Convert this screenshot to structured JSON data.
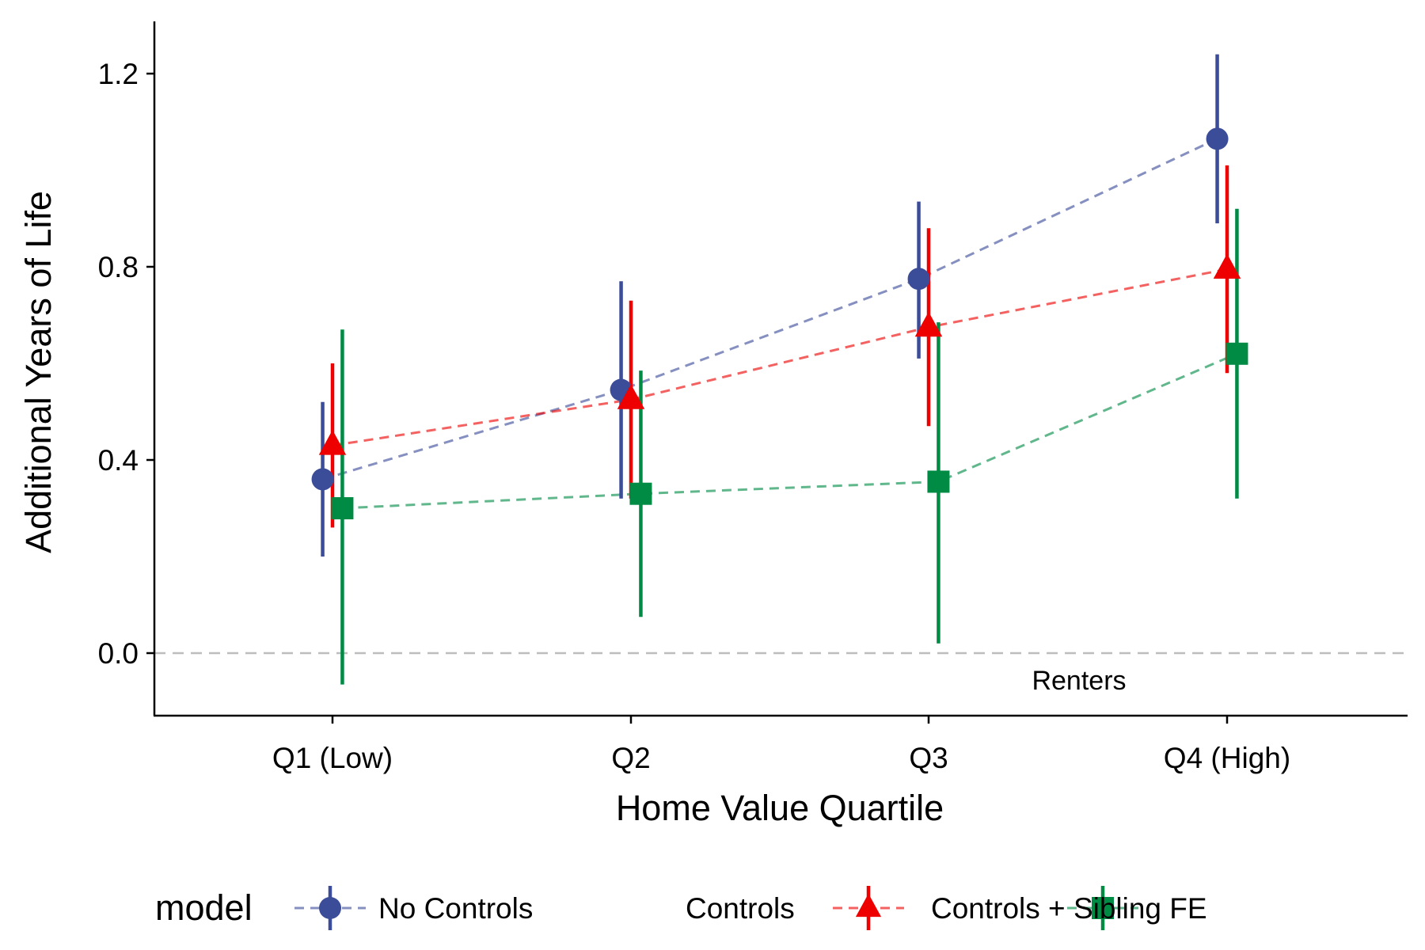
{
  "chart_data": {
    "type": "scatter",
    "subtype": "point-range with dashed connecting lines",
    "title": "",
    "xlabel": "Home Value Quartile",
    "ylabel": "Additional Years of Life",
    "categories": [
      "Q1 (Low)",
      "Q2",
      "Q3",
      "Q4 (High)"
    ],
    "ylim": [
      -0.13,
      1.3
    ],
    "yticks": [
      0.0,
      0.4,
      0.8,
      1.2
    ],
    "ytick_labels": [
      "0.0",
      "0.4",
      "0.8",
      "1.2"
    ],
    "grid": false,
    "reference_line": {
      "y": 0.0,
      "style": "dashed",
      "color": "#bdbdbd"
    },
    "annotation": {
      "text": "Renters"
    },
    "legend": {
      "title": "model",
      "position": "bottom"
    },
    "series": [
      {
        "name": "No Controls",
        "color": "#3b4c99",
        "marker": "circle",
        "offset": -0.033,
        "values": [
          0.36,
          0.545,
          0.775,
          1.065
        ],
        "lower": [
          0.2,
          0.32,
          0.61,
          0.89
        ],
        "upper": [
          0.52,
          0.77,
          0.935,
          1.24
        ]
      },
      {
        "name": "Controls",
        "color": "#ee0000",
        "marker": "triangle",
        "offset": 0.0,
        "values": [
          0.43,
          0.525,
          0.675,
          0.795
        ],
        "lower": [
          0.26,
          0.32,
          0.47,
          0.58
        ],
        "upper": [
          0.6,
          0.73,
          0.88,
          1.01
        ]
      },
      {
        "name": "Controls + Sibling FE",
        "color": "#008b45",
        "marker": "square",
        "offset": 0.033,
        "values": [
          0.3,
          0.33,
          0.355,
          0.62
        ],
        "lower": [
          -0.065,
          0.075,
          0.02,
          0.32
        ],
        "upper": [
          0.67,
          0.585,
          0.685,
          0.92
        ]
      }
    ]
  }
}
